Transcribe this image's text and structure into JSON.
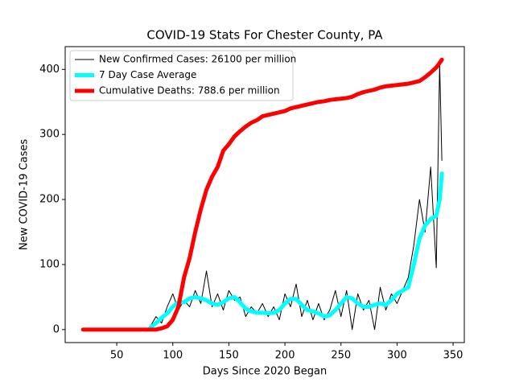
{
  "chart_data": {
    "type": "line",
    "title": "COVID-19 Stats For Chester County, PA",
    "x_label": "Days Since 2020 Began",
    "y_label": "New COVID-19 Cases",
    "x": [
      20,
      25,
      30,
      35,
      40,
      45,
      50,
      55,
      60,
      65,
      70,
      75,
      80,
      85,
      90,
      95,
      100,
      105,
      110,
      115,
      120,
      125,
      130,
      135,
      140,
      145,
      150,
      155,
      160,
      165,
      170,
      175,
      180,
      185,
      190,
      195,
      200,
      205,
      210,
      215,
      220,
      225,
      230,
      235,
      240,
      245,
      250,
      255,
      260,
      265,
      270,
      275,
      280,
      285,
      290,
      295,
      300,
      305,
      310,
      315,
      320,
      325,
      330,
      335,
      338,
      340
    ],
    "series": [
      {
        "name": "New Confirmed Cases: 26100 per million",
        "color": "#000000",
        "values": [
          null,
          null,
          null,
          null,
          null,
          null,
          null,
          null,
          null,
          null,
          null,
          null,
          5,
          20,
          10,
          35,
          55,
          30,
          45,
          35,
          60,
          40,
          90,
          35,
          55,
          30,
          60,
          45,
          50,
          20,
          35,
          25,
          40,
          20,
          35,
          15,
          55,
          35,
          70,
          20,
          45,
          15,
          40,
          15,
          30,
          60,
          20,
          60,
          0,
          55,
          30,
          45,
          0,
          65,
          30,
          55,
          40,
          60,
          80,
          130,
          200,
          150,
          250,
          95,
          410,
          260
        ]
      },
      {
        "name": "7 Day Case Average",
        "color": "#00ffff",
        "values": [
          null,
          null,
          null,
          null,
          null,
          null,
          null,
          null,
          null,
          null,
          null,
          null,
          3,
          10,
          18,
          25,
          35,
          42,
          42,
          48,
          50,
          48,
          45,
          40,
          38,
          42,
          48,
          50,
          42,
          32,
          28,
          26,
          26,
          25,
          26,
          30,
          40,
          47,
          47,
          38,
          30,
          28,
          25,
          20,
          22,
          30,
          40,
          50,
          48,
          40,
          35,
          35,
          38,
          40,
          38,
          45,
          55,
          60,
          65,
          100,
          140,
          160,
          170,
          175,
          200,
          240
        ]
      },
      {
        "name": "Cumulative Deaths: 788.6 per million",
        "color": "#ff0000",
        "values": [
          0,
          0,
          0,
          0,
          0,
          0,
          0,
          0,
          0,
          0,
          0,
          0,
          0,
          0,
          2,
          5,
          15,
          35,
          80,
          110,
          150,
          185,
          215,
          235,
          250,
          275,
          285,
          297,
          305,
          312,
          318,
          322,
          328,
          330,
          332,
          334,
          336,
          340,
          342,
          344,
          346,
          348,
          350,
          351,
          353,
          354,
          355,
          356,
          358,
          362,
          365,
          367,
          369,
          372,
          374,
          375,
          376,
          377,
          378,
          380,
          382,
          388,
          395,
          403,
          410,
          415
        ]
      }
    ],
    "xlim": [
      4,
      360
    ],
    "ylim": [
      -20,
      435
    ],
    "xticks": [
      50,
      100,
      150,
      200,
      250,
      300,
      350
    ],
    "yticks": [
      0,
      100,
      200,
      300,
      400
    ],
    "legend": "upper left",
    "grid": false
  }
}
